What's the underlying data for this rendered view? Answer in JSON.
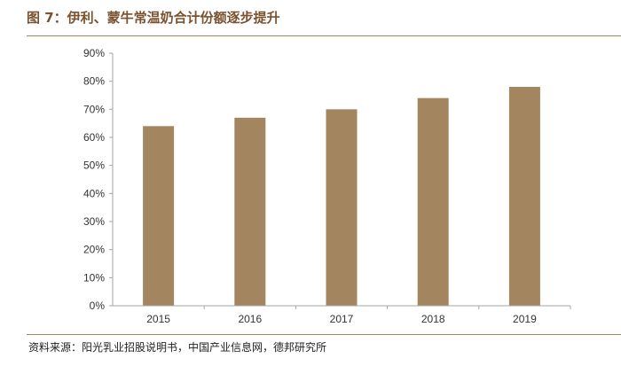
{
  "figure": {
    "title": "图 7：伊利、蒙牛常温奶合计份额逐步提升",
    "source": "资料来源：阳光乳业招股说明书，中国产业信息网，德邦研究所"
  },
  "colors": {
    "bar": "#A38560",
    "axis": "#A6A6A6",
    "title": "#7A5230"
  },
  "chart_data": {
    "type": "bar",
    "title": "",
    "xlabel": "",
    "ylabel": "",
    "categories": [
      "2015",
      "2016",
      "2017",
      "2018",
      "2019"
    ],
    "values": [
      64,
      67,
      70,
      74,
      78
    ],
    "unit": "%",
    "ylim": [
      0,
      90
    ],
    "yticks": [
      0,
      10,
      20,
      30,
      40,
      50,
      60,
      70,
      80,
      90
    ],
    "ytick_labels": [
      "0%",
      "10%",
      "20%",
      "30%",
      "40%",
      "50%",
      "60%",
      "70%",
      "80%",
      "90%"
    ],
    "grid": false,
    "legend": "none"
  }
}
